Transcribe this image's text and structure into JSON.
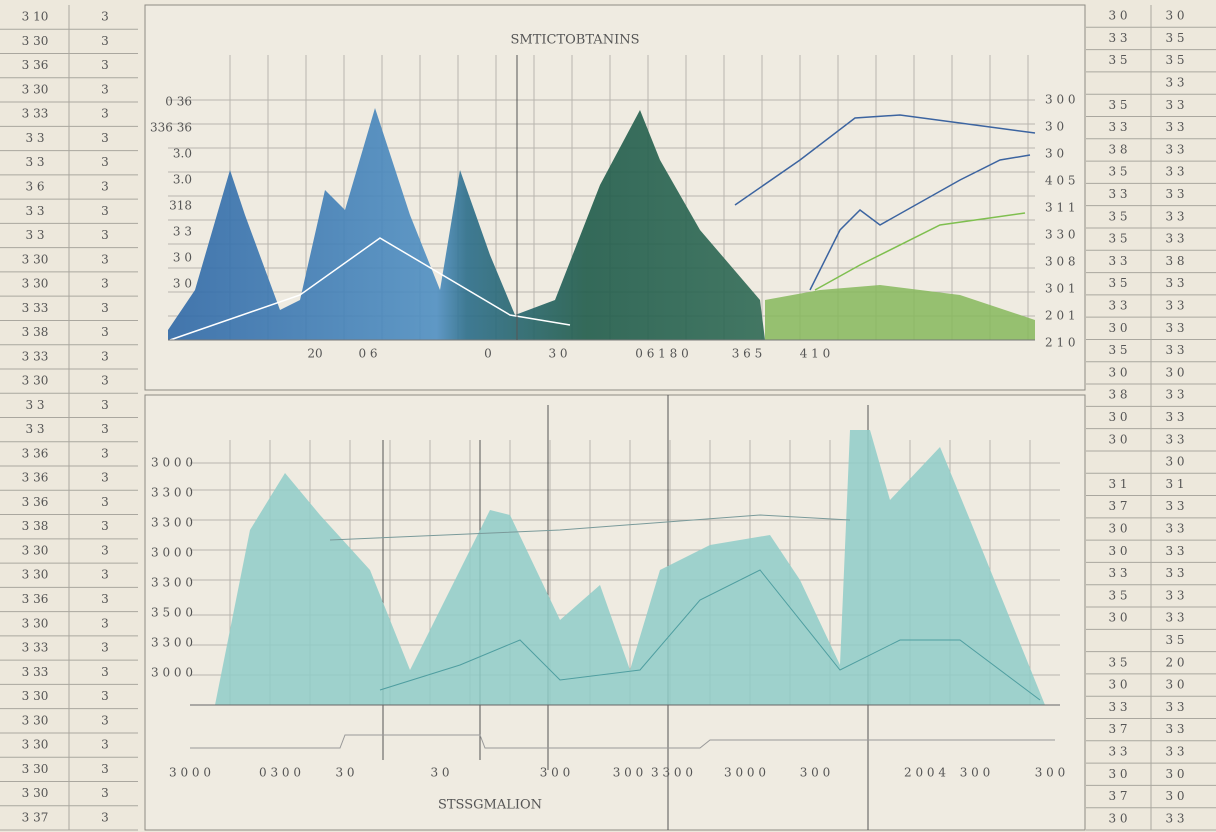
{
  "top_chart": {
    "title": "SMTICTOBTANINS",
    "y_labels": [
      "0 36",
      "336 36",
      "3.0",
      "3.0",
      "318",
      "3 3",
      "3 0",
      "3 0"
    ],
    "y2_labels": [
      "3 0 0",
      "3 0",
      "3 0",
      "4 0 5",
      "3 1 1",
      "3 3 0",
      "3 0 8",
      "3 0 1",
      "2 0 1",
      "2 1 0"
    ],
    "x_labels": [
      "20",
      "0 6",
      "0",
      "3 0",
      "0 6 1 8 0",
      "3 6 5",
      "4 1 0"
    ]
  },
  "bottom_chart": {
    "title": "STSSGMALION",
    "y_labels": [
      "3 0 0 0",
      "3 3 0 0",
      "3 3 0 0",
      "3 0 0 0",
      "3 3 0 0",
      "3 5 0 0",
      "3 3 0 0",
      "3 0 0 0"
    ],
    "x_labels": [
      "3 0 0 0",
      "0 3 0 0",
      "3 0",
      "3 0",
      "3 0 0",
      "3 0 0",
      "3 3 0 0",
      "3 0 0 0",
      "3 0 0",
      "2 0 0 4",
      "3 0 0",
      "3 0 0"
    ]
  },
  "left_table": {
    "rows": [
      [
        "3 10",
        "3"
      ],
      [
        "3 30",
        "3"
      ],
      [
        "3 36",
        "3"
      ],
      [
        "3 30",
        "3"
      ],
      [
        "3 33",
        "3"
      ],
      [
        "3 3",
        "3"
      ],
      [
        "3 3",
        "3"
      ],
      [
        "3 6",
        "3"
      ],
      [
        "3 3",
        "3"
      ],
      [
        "3 3",
        "3"
      ],
      [
        "3 30",
        "3"
      ],
      [
        "3 30",
        "3"
      ],
      [
        "3 33",
        "3"
      ],
      [
        "3 38",
        "3"
      ],
      [
        "3 33",
        "3"
      ],
      [
        "3 30",
        "3"
      ],
      [
        "3 3",
        "3"
      ],
      [
        "3 3",
        "3"
      ],
      [
        "3 36",
        "3"
      ],
      [
        "3 36",
        "3"
      ],
      [
        "3 36",
        "3"
      ],
      [
        "3 38",
        "3"
      ],
      [
        "3 30",
        "3"
      ],
      [
        "3 30",
        "3"
      ],
      [
        "3 36",
        "3"
      ],
      [
        "3 30",
        "3"
      ],
      [
        "3 33",
        "3"
      ],
      [
        "3 33",
        "3"
      ],
      [
        "3 30",
        "3"
      ],
      [
        "3 30",
        "3"
      ],
      [
        "3 30",
        "3"
      ],
      [
        "3 30",
        "3"
      ],
      [
        "3 30",
        "3"
      ],
      [
        "3 37",
        "3"
      ]
    ]
  },
  "right_table": {
    "rows": [
      [
        "3 0",
        "3 0"
      ],
      [
        "3 3",
        "3 5"
      ],
      [
        "3 5",
        "3 5"
      ],
      [
        "",
        "3 3"
      ],
      [
        "3 5",
        "3 3"
      ],
      [
        "3 3",
        "3 3"
      ],
      [
        "3 8",
        "3 3"
      ],
      [
        "3 5",
        "3 3"
      ],
      [
        "3 3",
        "3 3"
      ],
      [
        "3 5",
        "3 3"
      ],
      [
        "3 5",
        "3 3"
      ],
      [
        "3 3",
        "3 8"
      ],
      [
        "3 5",
        "3 3"
      ],
      [
        "3 3",
        "3 3"
      ],
      [
        "3 0",
        "3 3"
      ],
      [
        "3 5",
        "3 3"
      ],
      [
        "3 0",
        "3 0"
      ],
      [
        "3 8",
        "3 3"
      ],
      [
        "3 0",
        "3 3"
      ],
      [
        "3 0",
        "3 3"
      ],
      [
        "",
        "3 0"
      ],
      [
        "3 1",
        "3 1"
      ],
      [
        "3 7",
        "3 3"
      ],
      [
        "3 0",
        "3 3"
      ],
      [
        "3 0",
        "3 3"
      ],
      [
        "3 3",
        "3 3"
      ],
      [
        "3 5",
        "3 3"
      ],
      [
        "3 0",
        "3 3"
      ],
      [
        "",
        "3 5"
      ],
      [
        "3 5",
        "2 0"
      ],
      [
        "3 0",
        "3 0"
      ],
      [
        "3 3",
        "3 3"
      ],
      [
        "3 7",
        "3 3"
      ],
      [
        "3 3",
        "3 3"
      ],
      [
        "3 0",
        "3 0"
      ],
      [
        "3 7",
        "3 0"
      ],
      [
        "3 0",
        "3 3"
      ]
    ]
  }
}
